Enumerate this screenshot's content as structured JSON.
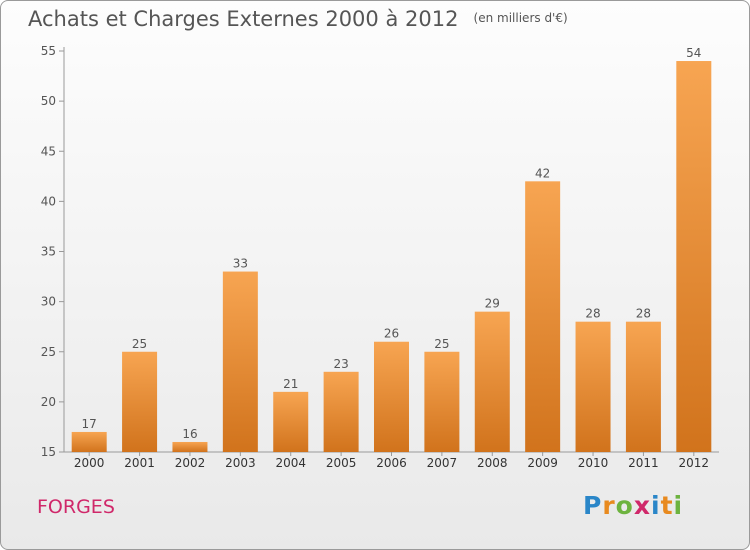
{
  "title": "Achats et Charges Externes 2000 à 2012",
  "subtitle": "(en milliers d'€)",
  "commune": "FORGES",
  "logo": {
    "text": "Proxiti",
    "colors": [
      "#2a86c8",
      "#e88a1f",
      "#6db33f",
      "#d0286a",
      "#2a86c8",
      "#e88a1f",
      "#6db33f"
    ]
  },
  "colors": {
    "bar_light": "#f7a552",
    "bar_dark": "#d1731c",
    "commune": "#d0286a",
    "text": "#555555"
  },
  "chart_data": {
    "type": "bar",
    "categories": [
      "2000",
      "2001",
      "2002",
      "2003",
      "2004",
      "2005",
      "2006",
      "2007",
      "2008",
      "2009",
      "2010",
      "2011",
      "2012"
    ],
    "values": [
      17,
      25,
      16,
      33,
      21,
      23,
      26,
      25,
      29,
      42,
      28,
      28,
      54
    ],
    "ylim": [
      15,
      55
    ],
    "yticks": [
      15,
      20,
      25,
      30,
      35,
      40,
      45,
      50,
      55
    ],
    "grid": false,
    "legend": "none"
  }
}
